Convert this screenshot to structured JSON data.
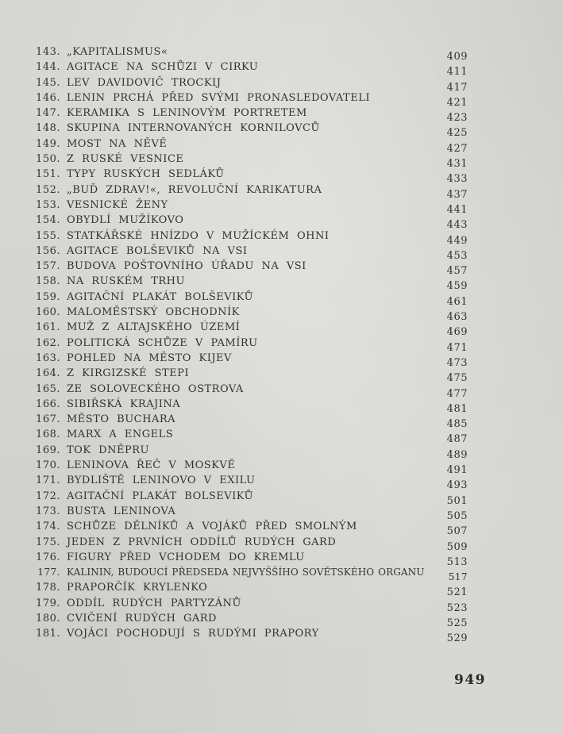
{
  "page": {
    "kind": "scanned-book-list-of-illustrations",
    "language": "czech",
    "folio": "949",
    "items": [
      {
        "num": "143.",
        "title": "„KAPITALISMUS«",
        "page": "409"
      },
      {
        "num": "144.",
        "title": "AGITACE NA SCHŮZI V CIRKU",
        "page": "411"
      },
      {
        "num": "145.",
        "title": "LEV DAVIDOVIČ TROCKIJ",
        "page": "417"
      },
      {
        "num": "146.",
        "title": "LENIN PRCHÁ PŘED SVÝMI PRONASLEDOVATELI",
        "page": "421"
      },
      {
        "num": "147.",
        "title": "KERAMIKA S LENINOVÝM PORTRETEM",
        "page": "423"
      },
      {
        "num": "148.",
        "title": "SKUPINA INTERNOVANÝCH KORNILOVCŮ",
        "page": "425"
      },
      {
        "num": "149.",
        "title": "MOST NA NĚVĚ",
        "page": "427"
      },
      {
        "num": "150.",
        "title": "Z RUSKÉ VESNICE",
        "page": "431"
      },
      {
        "num": "151.",
        "title": "TYPY RUSKÝCH SEDLÁKŮ",
        "page": "433"
      },
      {
        "num": "152.",
        "title": "„BUĎ ZDRAV!«, REVOLUČNÍ KARIKATURA",
        "page": "437"
      },
      {
        "num": "153.",
        "title": "VESNICKÉ ŽENY",
        "page": "441"
      },
      {
        "num": "154.",
        "title": "OBYDLÍ MUŽÍKOVO",
        "page": "443"
      },
      {
        "num": "155.",
        "title": "STATKÁŘSKÉ HNÍZDO V MUŽÍCKÉM OHNI",
        "page": "449"
      },
      {
        "num": "156.",
        "title": "AGITACE BOLŠEVIKŮ NA VSI",
        "page": "453"
      },
      {
        "num": "157.",
        "title": "BUDOVA POŠTOVNÍHO ÚŘADU NA VSI",
        "page": "457"
      },
      {
        "num": "158.",
        "title": "NA RUSKÉM TRHU",
        "page": "459"
      },
      {
        "num": "159.",
        "title": "AGITAČNÍ PLAKÁT BOLŠEVIKŮ",
        "page": "461"
      },
      {
        "num": "160.",
        "title": "MALOMĚSTSKÝ OBCHODNÍK",
        "page": "463"
      },
      {
        "num": "161.",
        "title": "MUŽ Z ALTAJSKÉHO ÚZEMÍ",
        "page": "469"
      },
      {
        "num": "162.",
        "title": "POLITICKÁ SCHŮZE V PAMÍRU",
        "page": "471"
      },
      {
        "num": "163.",
        "title": "POHLED NA MĚSTO KIJEV",
        "page": "473"
      },
      {
        "num": "164.",
        "title": "Z KIRGIZSKÉ STEPI",
        "page": "475"
      },
      {
        "num": "165.",
        "title": "ZE SOLOVECKÉHO OSTROVA",
        "page": "477"
      },
      {
        "num": "166.",
        "title": "SIBIŘSKÁ KRAJINA",
        "page": "481"
      },
      {
        "num": "167.",
        "title": "MĚSTO BUCHARA",
        "page": "485"
      },
      {
        "num": "168.",
        "title": "MARX A ENGELS",
        "page": "487"
      },
      {
        "num": "169.",
        "title": "TOK DNĚPRU",
        "page": "489"
      },
      {
        "num": "170.",
        "title": "LENINOVA ŘEČ V MOSKVĚ",
        "page": "491"
      },
      {
        "num": "171.",
        "title": "BYDLIŠTĚ LENINOVO V EXILU",
        "page": "493"
      },
      {
        "num": "172.",
        "title": "AGITAČNÍ PLAKÁT BOLSEVIKŮ",
        "page": "501"
      },
      {
        "num": "173.",
        "title": "BUSTA LENINOVA",
        "page": "505"
      },
      {
        "num": "174.",
        "title": "SCHŮZE DĚLNÍKŮ A VOJÁKŮ PŘED SMOLNÝM",
        "page": "507"
      },
      {
        "num": "175.",
        "title": "JEDEN Z PRVNÍCH ODDÍLŮ RUDÝCH GARD",
        "page": "509"
      },
      {
        "num": "176.",
        "title": "FIGURY PŘED VCHODEM DO KREMLU",
        "page": "513"
      },
      {
        "num": "177.",
        "title": "KALININ, BUDOUCÍ PŘEDSEDA NEJVYŠŠÍHO SOVĚTSKÉHO ORGANU",
        "page": "517"
      },
      {
        "num": "178.",
        "title": "PRAPORČÍK KRYLENKO",
        "page": "521"
      },
      {
        "num": "179.",
        "title": "ODDÍL RUDÝCH PARTYZÁNŮ",
        "page": "523"
      },
      {
        "num": "180.",
        "title": "CVIČENÍ RUDÝCH GARD",
        "page": "525"
      },
      {
        "num": "181.",
        "title": "VOJÁCI POCHODUJÍ S RUDÝMI PRAPORY",
        "page": "529"
      }
    ]
  },
  "colors": {
    "paper": "#d7d7d3",
    "ink": "#35322d"
  }
}
